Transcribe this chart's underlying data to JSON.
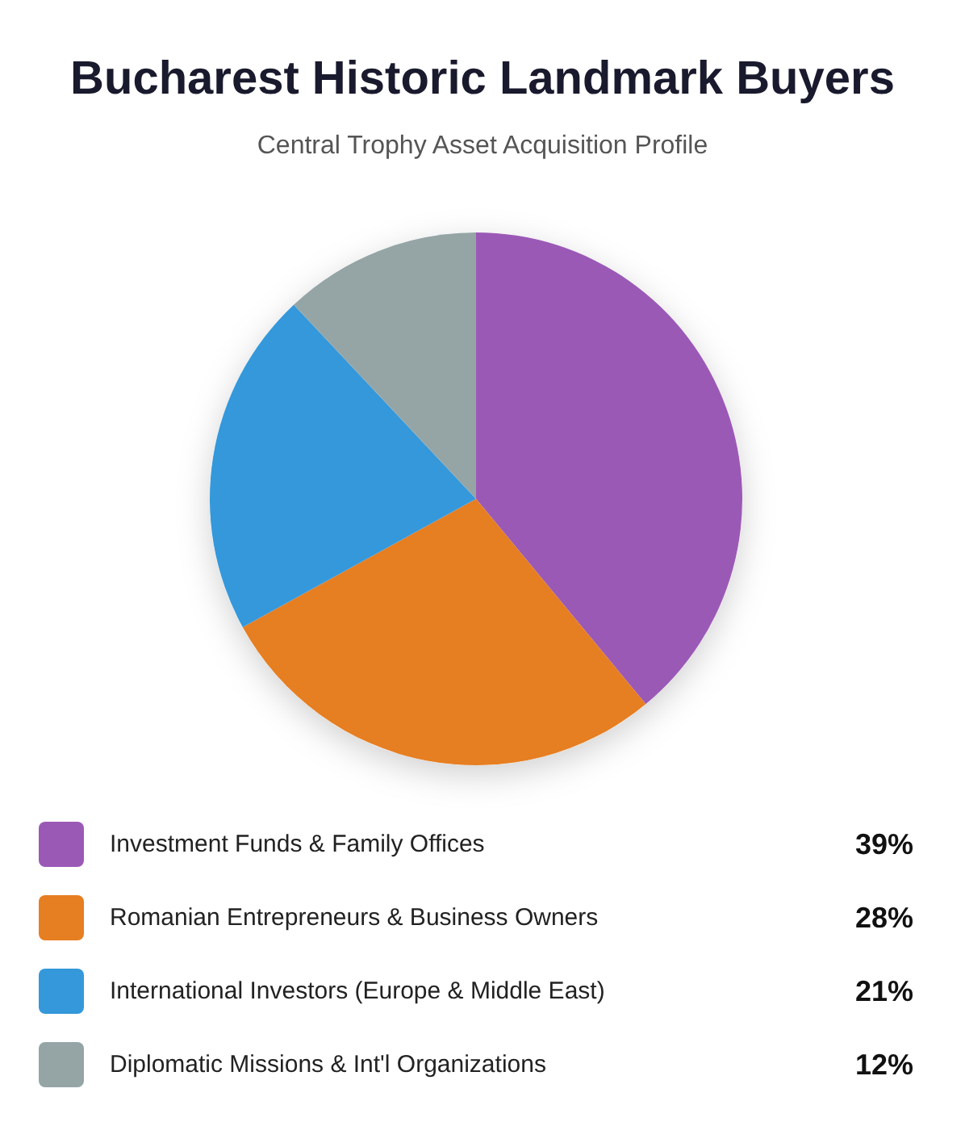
{
  "chart_data": {
    "type": "pie",
    "title": "Bucharest Historic Landmark Buyers",
    "subtitle": "Central Trophy Asset Acquisition Profile",
    "categories": [
      "Investment Funds & Family Offices",
      "Romanian Entrepreneurs & Business Owners",
      "International Investors (Europe & Middle East)",
      "Diplomatic Missions & Int'l Organizations"
    ],
    "values": [
      39,
      28,
      21,
      12
    ],
    "colors": [
      "#9b59b6",
      "#e67e22",
      "#3498db",
      "#95a5a6"
    ],
    "value_labels": [
      "39%",
      "28%",
      "21%",
      "12%"
    ],
    "legend": "bottom"
  }
}
